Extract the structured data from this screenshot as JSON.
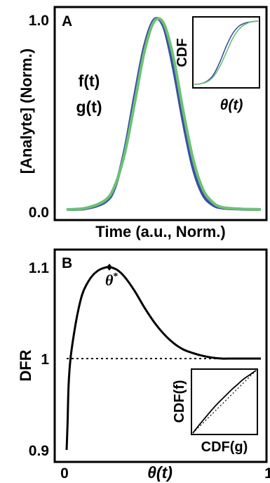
{
  "colors": {
    "f": "#3a4fa5",
    "g": "#6cc173",
    "axis": "#000000"
  },
  "chart_data": [
    {
      "panel": "A",
      "type": "line",
      "ylabel": "[Analyte] (Norm.)",
      "xlabel": "Time (a.u., Norm.)",
      "yticks": [
        "0.0",
        "1.0"
      ],
      "ylim": [
        0,
        1
      ],
      "xlim": [
        0,
        1
      ],
      "series": [
        {
          "name": "f(t)",
          "x": [
            0,
            0.1,
            0.2,
            0.25,
            0.3,
            0.35,
            0.4,
            0.45,
            0.5,
            0.55,
            0.6,
            0.65,
            0.7,
            0.75,
            0.8,
            0.9,
            1.0
          ],
          "y": [
            0.0,
            0.005,
            0.04,
            0.12,
            0.32,
            0.6,
            0.86,
            1.0,
            0.96,
            0.74,
            0.46,
            0.22,
            0.08,
            0.025,
            0.008,
            0.002,
            0.0
          ]
        },
        {
          "name": "g(t)",
          "x": [
            0,
            0.1,
            0.2,
            0.25,
            0.3,
            0.35,
            0.4,
            0.45,
            0.5,
            0.55,
            0.6,
            0.65,
            0.7,
            0.75,
            0.8,
            0.9,
            1.0
          ],
          "y": [
            0.0,
            0.008,
            0.05,
            0.13,
            0.3,
            0.56,
            0.83,
            0.99,
            0.98,
            0.8,
            0.52,
            0.27,
            0.11,
            0.04,
            0.012,
            0.003,
            0.0
          ]
        }
      ],
      "inset": {
        "type": "line",
        "ylabel": "CDF",
        "xlabel": "θ(t)",
        "series": [
          {
            "name": "f",
            "x": [
              0,
              0.1,
              0.2,
              0.3,
              0.4,
              0.5,
              0.6,
              0.7,
              0.8,
              0.9,
              1.0
            ],
            "y": [
              0.0,
              0.01,
              0.05,
              0.15,
              0.35,
              0.6,
              0.8,
              0.92,
              0.97,
              0.99,
              1.0
            ]
          },
          {
            "name": "g",
            "x": [
              0,
              0.1,
              0.2,
              0.3,
              0.4,
              0.5,
              0.6,
              0.7,
              0.8,
              0.9,
              1.0
            ],
            "y": [
              0.0,
              0.01,
              0.04,
              0.12,
              0.28,
              0.5,
              0.72,
              0.87,
              0.95,
              0.99,
              1.0
            ]
          }
        ]
      }
    },
    {
      "panel": "B",
      "type": "line",
      "ylabel": "DFR",
      "xlabel": "θ(t)",
      "yticks": [
        "0.9",
        "1",
        "1.1"
      ],
      "ytick_values": [
        0.9,
        1.0,
        1.1
      ],
      "xticks": [
        "0",
        "1"
      ],
      "ylim": [
        0.9,
        1.11
      ],
      "xlim": [
        0,
        1
      ],
      "reference_line": 1.0,
      "peak": {
        "label": "θ",
        "label_sup": "*",
        "x": 0.22,
        "y": 1.1
      },
      "series": [
        {
          "name": "DFR",
          "x": [
            0.0,
            0.005,
            0.01,
            0.02,
            0.04,
            0.06,
            0.08,
            0.1,
            0.13,
            0.16,
            0.19,
            0.22,
            0.26,
            0.3,
            0.35,
            0.4,
            0.45,
            0.5,
            0.55,
            0.6,
            0.65,
            0.7,
            0.75,
            0.8,
            0.85,
            0.9,
            0.95,
            1.0
          ],
          "y": [
            0.9,
            0.93,
            0.97,
            1.0,
            1.03,
            1.053,
            1.07,
            1.08,
            1.09,
            1.096,
            1.099,
            1.1,
            1.097,
            1.089,
            1.074,
            1.056,
            1.04,
            1.027,
            1.017,
            1.01,
            1.006,
            1.003,
            1.001,
            1.0,
            1.0,
            1.0,
            1.0,
            1.0
          ]
        }
      ],
      "inset": {
        "type": "line",
        "ylabel": "CDF(f)",
        "xlabel": "CDF(g)",
        "series": [
          {
            "name": "CDF(f) vs CDF(g)",
            "x": [
              0,
              0.1,
              0.2,
              0.3,
              0.4,
              0.5,
              0.6,
              0.7,
              0.8,
              0.9,
              1.0
            ],
            "y": [
              0,
              0.13,
              0.25,
              0.37,
              0.48,
              0.58,
              0.68,
              0.77,
              0.86,
              0.93,
              1.0
            ]
          },
          {
            "name": "identity",
            "x": [
              0,
              1
            ],
            "y": [
              0,
              1
            ],
            "style": "dotted"
          }
        ]
      }
    }
  ]
}
